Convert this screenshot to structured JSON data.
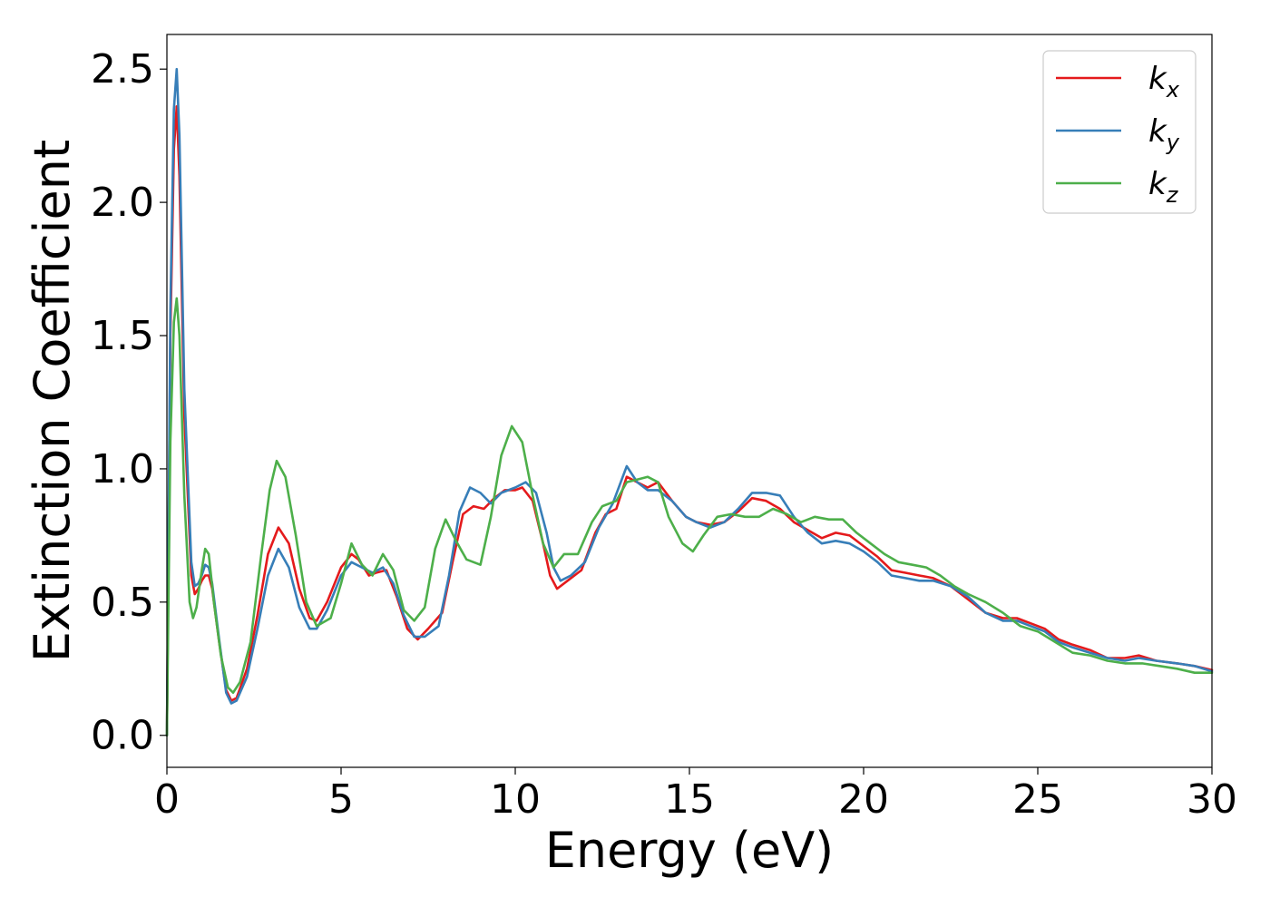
{
  "chart_data": {
    "type": "line",
    "title": "",
    "xlabel": "Energy (eV)",
    "ylabel": "Extinction Coefficient",
    "xlim": [
      0,
      30
    ],
    "ylim": [
      -0.12,
      2.63
    ],
    "xticks": [
      0,
      5,
      10,
      15,
      20,
      25,
      30
    ],
    "xtick_labels": [
      "0",
      "5",
      "10",
      "15",
      "20",
      "25",
      "30"
    ],
    "yticks": [
      0.0,
      0.5,
      1.0,
      1.5,
      2.0,
      2.5
    ],
    "ytick_labels": [
      "0.0",
      "0.5",
      "1.0",
      "1.5",
      "2.0",
      "2.5"
    ],
    "grid": false,
    "legend_position": "top-right",
    "series": [
      {
        "name": "k",
        "subscript": "x",
        "color": "#e41a1c",
        "points": [
          [
            0,
            0.0
          ],
          [
            0.1,
            1.5
          ],
          [
            0.2,
            2.2
          ],
          [
            0.28,
            2.36
          ],
          [
            0.36,
            2.1
          ],
          [
            0.5,
            1.2
          ],
          [
            0.7,
            0.6
          ],
          [
            0.8,
            0.53
          ],
          [
            0.9,
            0.55
          ],
          [
            1.0,
            0.58
          ],
          [
            1.1,
            0.6
          ],
          [
            1.2,
            0.6
          ],
          [
            1.3,
            0.55
          ],
          [
            1.5,
            0.35
          ],
          [
            1.7,
            0.17
          ],
          [
            1.85,
            0.13
          ],
          [
            2.0,
            0.14
          ],
          [
            2.3,
            0.25
          ],
          [
            2.6,
            0.45
          ],
          [
            2.9,
            0.68
          ],
          [
            3.2,
            0.78
          ],
          [
            3.5,
            0.72
          ],
          [
            3.8,
            0.55
          ],
          [
            4.1,
            0.44
          ],
          [
            4.3,
            0.43
          ],
          [
            4.6,
            0.5
          ],
          [
            5.0,
            0.63
          ],
          [
            5.3,
            0.68
          ],
          [
            5.5,
            0.66
          ],
          [
            5.8,
            0.6
          ],
          [
            6.0,
            0.61
          ],
          [
            6.3,
            0.62
          ],
          [
            6.6,
            0.52
          ],
          [
            6.9,
            0.4
          ],
          [
            7.2,
            0.36
          ],
          [
            7.5,
            0.4
          ],
          [
            7.9,
            0.46
          ],
          [
            8.2,
            0.65
          ],
          [
            8.5,
            0.83
          ],
          [
            8.8,
            0.86
          ],
          [
            9.1,
            0.85
          ],
          [
            9.4,
            0.89
          ],
          [
            9.7,
            0.92
          ],
          [
            10.0,
            0.92
          ],
          [
            10.2,
            0.93
          ],
          [
            10.5,
            0.88
          ],
          [
            10.8,
            0.72
          ],
          [
            11.0,
            0.6
          ],
          [
            11.2,
            0.55
          ],
          [
            11.5,
            0.58
          ],
          [
            11.9,
            0.62
          ],
          [
            12.3,
            0.76
          ],
          [
            12.6,
            0.83
          ],
          [
            12.9,
            0.85
          ],
          [
            13.2,
            0.97
          ],
          [
            13.5,
            0.95
          ],
          [
            13.8,
            0.93
          ],
          [
            14.1,
            0.95
          ],
          [
            14.5,
            0.88
          ],
          [
            14.9,
            0.82
          ],
          [
            15.2,
            0.8
          ],
          [
            15.6,
            0.79
          ],
          [
            16.0,
            0.8
          ],
          [
            16.4,
            0.84
          ],
          [
            16.8,
            0.89
          ],
          [
            17.2,
            0.88
          ],
          [
            17.6,
            0.85
          ],
          [
            18.0,
            0.8
          ],
          [
            18.4,
            0.77
          ],
          [
            18.8,
            0.74
          ],
          [
            19.2,
            0.76
          ],
          [
            19.6,
            0.75
          ],
          [
            20.0,
            0.71
          ],
          [
            20.4,
            0.67
          ],
          [
            20.8,
            0.62
          ],
          [
            21.2,
            0.61
          ],
          [
            21.6,
            0.6
          ],
          [
            22.0,
            0.59
          ],
          [
            22.5,
            0.56
          ],
          [
            23.0,
            0.51
          ],
          [
            23.5,
            0.46
          ],
          [
            24.0,
            0.44
          ],
          [
            24.4,
            0.44
          ],
          [
            24.8,
            0.42
          ],
          [
            25.2,
            0.4
          ],
          [
            25.6,
            0.36
          ],
          [
            26.0,
            0.34
          ],
          [
            26.5,
            0.32
          ],
          [
            27.0,
            0.29
          ],
          [
            27.5,
            0.29
          ],
          [
            27.9,
            0.3
          ],
          [
            28.4,
            0.28
          ],
          [
            29.0,
            0.27
          ],
          [
            29.5,
            0.26
          ],
          [
            30.0,
            0.245
          ]
        ]
      },
      {
        "name": "k",
        "subscript": "y",
        "color": "#377eb8",
        "points": [
          [
            0,
            0.0
          ],
          [
            0.1,
            1.6
          ],
          [
            0.2,
            2.35
          ],
          [
            0.28,
            2.5
          ],
          [
            0.36,
            2.25
          ],
          [
            0.5,
            1.3
          ],
          [
            0.7,
            0.65
          ],
          [
            0.8,
            0.56
          ],
          [
            0.9,
            0.57
          ],
          [
            1.0,
            0.6
          ],
          [
            1.1,
            0.64
          ],
          [
            1.2,
            0.63
          ],
          [
            1.3,
            0.57
          ],
          [
            1.5,
            0.36
          ],
          [
            1.7,
            0.16
          ],
          [
            1.85,
            0.12
          ],
          [
            2.0,
            0.13
          ],
          [
            2.3,
            0.22
          ],
          [
            2.6,
            0.4
          ],
          [
            2.9,
            0.6
          ],
          [
            3.2,
            0.7
          ],
          [
            3.5,
            0.63
          ],
          [
            3.8,
            0.48
          ],
          [
            4.1,
            0.4
          ],
          [
            4.3,
            0.4
          ],
          [
            4.6,
            0.47
          ],
          [
            5.0,
            0.6
          ],
          [
            5.3,
            0.65
          ],
          [
            5.6,
            0.63
          ],
          [
            5.9,
            0.61
          ],
          [
            6.2,
            0.63
          ],
          [
            6.5,
            0.57
          ],
          [
            6.8,
            0.45
          ],
          [
            7.1,
            0.37
          ],
          [
            7.4,
            0.37
          ],
          [
            7.8,
            0.41
          ],
          [
            8.1,
            0.6
          ],
          [
            8.4,
            0.84
          ],
          [
            8.7,
            0.93
          ],
          [
            9.0,
            0.91
          ],
          [
            9.3,
            0.87
          ],
          [
            9.6,
            0.91
          ],
          [
            10.0,
            0.93
          ],
          [
            10.3,
            0.95
          ],
          [
            10.6,
            0.91
          ],
          [
            10.9,
            0.76
          ],
          [
            11.1,
            0.63
          ],
          [
            11.3,
            0.58
          ],
          [
            11.6,
            0.6
          ],
          [
            12.0,
            0.65
          ],
          [
            12.4,
            0.78
          ],
          [
            12.8,
            0.87
          ],
          [
            13.2,
            1.01
          ],
          [
            13.5,
            0.95
          ],
          [
            13.8,
            0.92
          ],
          [
            14.1,
            0.92
          ],
          [
            14.5,
            0.88
          ],
          [
            14.9,
            0.82
          ],
          [
            15.2,
            0.8
          ],
          [
            15.6,
            0.78
          ],
          [
            16.0,
            0.8
          ],
          [
            16.4,
            0.85
          ],
          [
            16.8,
            0.91
          ],
          [
            17.2,
            0.91
          ],
          [
            17.6,
            0.9
          ],
          [
            18.0,
            0.82
          ],
          [
            18.4,
            0.76
          ],
          [
            18.8,
            0.72
          ],
          [
            19.2,
            0.73
          ],
          [
            19.6,
            0.72
          ],
          [
            20.0,
            0.69
          ],
          [
            20.4,
            0.65
          ],
          [
            20.8,
            0.6
          ],
          [
            21.2,
            0.59
          ],
          [
            21.6,
            0.58
          ],
          [
            22.0,
            0.58
          ],
          [
            22.5,
            0.56
          ],
          [
            23.0,
            0.52
          ],
          [
            23.5,
            0.46
          ],
          [
            24.0,
            0.43
          ],
          [
            24.4,
            0.43
          ],
          [
            24.8,
            0.41
          ],
          [
            25.2,
            0.39
          ],
          [
            25.6,
            0.35
          ],
          [
            26.0,
            0.33
          ],
          [
            26.5,
            0.31
          ],
          [
            27.0,
            0.29
          ],
          [
            27.5,
            0.28
          ],
          [
            27.9,
            0.29
          ],
          [
            28.4,
            0.28
          ],
          [
            29.0,
            0.27
          ],
          [
            29.5,
            0.26
          ],
          [
            30.0,
            0.24
          ]
        ]
      },
      {
        "name": "k",
        "subscript": "z",
        "color": "#4daf4a",
        "points": [
          [
            0,
            0.0
          ],
          [
            0.1,
            1.1
          ],
          [
            0.2,
            1.55
          ],
          [
            0.28,
            1.64
          ],
          [
            0.36,
            1.5
          ],
          [
            0.5,
            0.9
          ],
          [
            0.65,
            0.5
          ],
          [
            0.75,
            0.44
          ],
          [
            0.85,
            0.48
          ],
          [
            1.0,
            0.62
          ],
          [
            1.1,
            0.7
          ],
          [
            1.2,
            0.68
          ],
          [
            1.35,
            0.5
          ],
          [
            1.55,
            0.3
          ],
          [
            1.75,
            0.18
          ],
          [
            1.9,
            0.16
          ],
          [
            2.1,
            0.2
          ],
          [
            2.4,
            0.35
          ],
          [
            2.7,
            0.67
          ],
          [
            2.95,
            0.92
          ],
          [
            3.15,
            1.03
          ],
          [
            3.4,
            0.97
          ],
          [
            3.7,
            0.75
          ],
          [
            4.0,
            0.5
          ],
          [
            4.3,
            0.41
          ],
          [
            4.7,
            0.44
          ],
          [
            5.0,
            0.57
          ],
          [
            5.3,
            0.72
          ],
          [
            5.6,
            0.64
          ],
          [
            5.9,
            0.6
          ],
          [
            6.2,
            0.68
          ],
          [
            6.5,
            0.62
          ],
          [
            6.8,
            0.47
          ],
          [
            7.1,
            0.43
          ],
          [
            7.4,
            0.48
          ],
          [
            7.7,
            0.7
          ],
          [
            8.0,
            0.81
          ],
          [
            8.3,
            0.73
          ],
          [
            8.6,
            0.66
          ],
          [
            9.0,
            0.64
          ],
          [
            9.3,
            0.82
          ],
          [
            9.6,
            1.05
          ],
          [
            9.9,
            1.16
          ],
          [
            10.2,
            1.1
          ],
          [
            10.5,
            0.9
          ],
          [
            10.8,
            0.72
          ],
          [
            11.1,
            0.63
          ],
          [
            11.4,
            0.68
          ],
          [
            11.8,
            0.68
          ],
          [
            12.2,
            0.8
          ],
          [
            12.5,
            0.86
          ],
          [
            12.9,
            0.88
          ],
          [
            13.2,
            0.95
          ],
          [
            13.5,
            0.96
          ],
          [
            13.8,
            0.97
          ],
          [
            14.1,
            0.95
          ],
          [
            14.4,
            0.82
          ],
          [
            14.8,
            0.72
          ],
          [
            15.1,
            0.69
          ],
          [
            15.4,
            0.75
          ],
          [
            15.8,
            0.82
          ],
          [
            16.2,
            0.83
          ],
          [
            16.6,
            0.82
          ],
          [
            17.0,
            0.82
          ],
          [
            17.4,
            0.85
          ],
          [
            17.8,
            0.83
          ],
          [
            18.2,
            0.8
          ],
          [
            18.6,
            0.82
          ],
          [
            19.0,
            0.81
          ],
          [
            19.4,
            0.81
          ],
          [
            19.8,
            0.76
          ],
          [
            20.2,
            0.72
          ],
          [
            20.6,
            0.68
          ],
          [
            21.0,
            0.65
          ],
          [
            21.4,
            0.64
          ],
          [
            21.8,
            0.63
          ],
          [
            22.2,
            0.6
          ],
          [
            22.6,
            0.56
          ],
          [
            23.0,
            0.53
          ],
          [
            23.5,
            0.5
          ],
          [
            24.0,
            0.46
          ],
          [
            24.5,
            0.41
          ],
          [
            25.0,
            0.39
          ],
          [
            25.5,
            0.35
          ],
          [
            26.0,
            0.31
          ],
          [
            26.5,
            0.3
          ],
          [
            27.0,
            0.28
          ],
          [
            27.5,
            0.27
          ],
          [
            28.0,
            0.27
          ],
          [
            28.5,
            0.26
          ],
          [
            29.0,
            0.25
          ],
          [
            29.5,
            0.235
          ],
          [
            30.0,
            0.235
          ]
        ]
      }
    ]
  }
}
